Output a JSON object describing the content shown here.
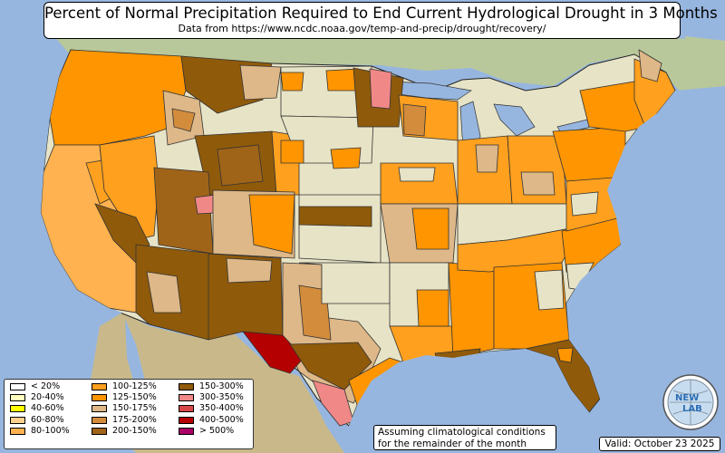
{
  "title": "Percent of Normal Precipitation Required to End Current Hydrological Drought in 3 Months",
  "subtitle": "Data from https://www.ncdc.noaa.gov/temp-and-precip/drought/recovery/",
  "note_line1": "Assuming climatological conditions",
  "note_line2": "for the remainder of the month",
  "valid": "Valid: October 23 2025",
  "logo_text_top": "NEW",
  "logo_text_bottom": "LAB",
  "legend": [
    {
      "label": "< 20%",
      "color": "#ffffff"
    },
    {
      "label": "20-40%",
      "color": "#ffffc0"
    },
    {
      "label": "40-60%",
      "color": "#ffff00"
    },
    {
      "label": "60-80%",
      "color": "#ffd18c"
    },
    {
      "label": "80-100%",
      "color": "#ffb24f"
    },
    {
      "label": "100-125%",
      "color": "#ffa01e"
    },
    {
      "label": "125-150%",
      "color": "#ff9500"
    },
    {
      "label": "150-175%",
      "color": "#deb888"
    },
    {
      "label": "175-200%",
      "color": "#d38c3c"
    },
    {
      "label": "200-150%",
      "color": "#a06418"
    },
    {
      "label": "150-300%",
      "color": "#8f5a0a"
    },
    {
      "label": "300-350%",
      "color": "#f08888"
    },
    {
      "label": "350-400%",
      "color": "#d84848"
    },
    {
      "label": "400-500%",
      "color": "#b40000"
    },
    {
      "label": "> 500%",
      "color": "#aa0066"
    }
  ]
}
